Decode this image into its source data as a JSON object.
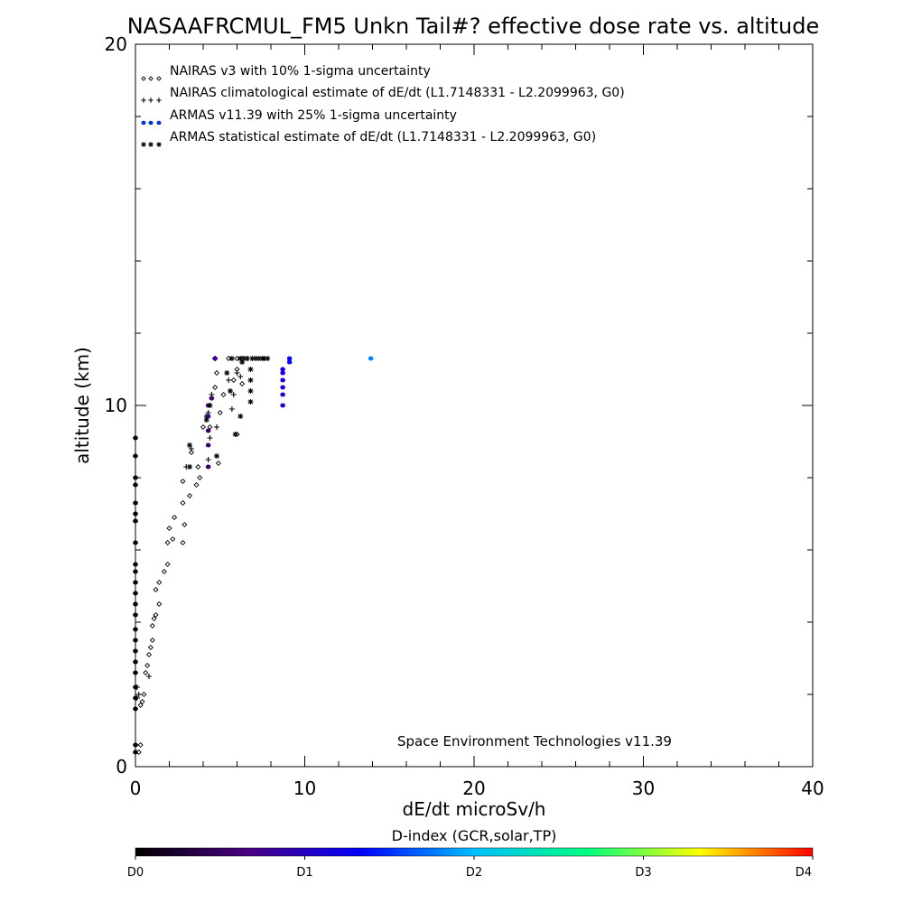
{
  "chart_data": {
    "type": "scatter",
    "title": "NASAAFRCMUL_FM5 Unkn Tail#? effective dose rate vs. altitude",
    "xlabel": "dE/dt microSv/h",
    "ylabel": "altitude (km)",
    "xlim": [
      0,
      40
    ],
    "ylim": [
      0,
      20
    ],
    "x_ticks": [
      "0",
      "10",
      "20",
      "30",
      "40"
    ],
    "y_ticks": [
      "0",
      "10",
      "20"
    ],
    "grid": false,
    "legend_position": "top-left",
    "annotation": "Space Environment Technologies v11.39",
    "colorbar": {
      "title": "D-index (GCR,solar,TP)",
      "labels": [
        {
          "text": "D0",
          "value": 0
        },
        {
          "text": "D1",
          "value": 5
        },
        {
          "text": "D2",
          "value": 10
        },
        {
          "text": "D3",
          "value": 20
        },
        {
          "text": "D4",
          "value": 40
        }
      ],
      "colors": [
        "#000000",
        "#4b0082",
        "#0000ff",
        "#00bfff",
        "#00ff80",
        "#ffff00",
        "#ff0000"
      ]
    },
    "series": [
      {
        "name": "NAIRAS v3 with 10% 1-sigma uncertainty",
        "marker": "diamond",
        "color": "#000000",
        "points": [
          [
            0.2,
            0.4
          ],
          [
            0.3,
            0.6
          ],
          [
            0.3,
            1.7
          ],
          [
            0.4,
            1.8
          ],
          [
            0.5,
            2.0
          ],
          [
            0.6,
            2.6
          ],
          [
            0.7,
            2.8
          ],
          [
            0.8,
            3.1
          ],
          [
            0.9,
            3.3
          ],
          [
            1.0,
            3.5
          ],
          [
            1.0,
            3.9
          ],
          [
            1.1,
            4.1
          ],
          [
            1.2,
            4.2
          ],
          [
            1.4,
            4.5
          ],
          [
            1.2,
            4.9
          ],
          [
            1.4,
            5.1
          ],
          [
            1.7,
            5.4
          ],
          [
            1.9,
            5.6
          ],
          [
            1.9,
            6.2
          ],
          [
            2.2,
            6.3
          ],
          [
            2.0,
            6.6
          ],
          [
            2.8,
            6.2
          ],
          [
            2.9,
            6.7
          ],
          [
            2.3,
            6.9
          ],
          [
            2.8,
            7.3
          ],
          [
            3.2,
            7.5
          ],
          [
            3.6,
            7.8
          ],
          [
            2.8,
            7.9
          ],
          [
            3.8,
            8.0
          ],
          [
            3.7,
            8.3
          ],
          [
            3.3,
            8.7
          ],
          [
            4.9,
            8.4
          ],
          [
            4.0,
            9.4
          ],
          [
            4.4,
            9.4
          ],
          [
            6.0,
            9.2
          ],
          [
            4.2,
            9.7
          ],
          [
            5.0,
            9.8
          ],
          [
            4.5,
            10.2
          ],
          [
            5.2,
            10.3
          ],
          [
            6.3,
            10.6
          ],
          [
            4.7,
            10.5
          ],
          [
            5.8,
            10.7
          ],
          [
            6.0,
            11.0
          ],
          [
            4.8,
            10.9
          ],
          [
            6.0,
            11.3
          ],
          [
            6.3,
            11.3
          ],
          [
            5.5,
            11.3
          ]
        ]
      },
      {
        "name": "NAIRAS climatological estimate of dE/dt (L1.7148331 - L2.2099963, G0)",
        "marker": "plus",
        "color": "#000000",
        "points": [
          [
            0.1,
            1.9
          ],
          [
            0.2,
            2.0
          ],
          [
            0.1,
            2.2
          ],
          [
            0.8,
            2.5
          ],
          [
            3.0,
            8.3
          ],
          [
            3.3,
            8.8
          ],
          [
            4.3,
            8.5
          ],
          [
            4.4,
            9.1
          ],
          [
            4.8,
            9.4
          ],
          [
            4.3,
            9.8
          ],
          [
            5.7,
            9.9
          ],
          [
            4.5,
            10.3
          ],
          [
            5.8,
            10.3
          ],
          [
            6.2,
            10.8
          ],
          [
            6.6,
            11.3
          ],
          [
            4.7,
            11.3
          ],
          [
            5.5,
            10.7
          ],
          [
            6.0,
            10.9
          ]
        ]
      },
      {
        "name": "ARMAS v11.39 with 25% 1-sigma uncertainty",
        "marker": "dot",
        "color": "#0033cc",
        "points": [
          [
            0.0,
            9.1
          ],
          [
            0.0,
            8.6
          ],
          [
            0.0,
            8.0
          ],
          [
            0.0,
            7.8
          ],
          [
            0.0,
            7.3
          ],
          [
            0.0,
            7.0
          ],
          [
            0.0,
            6.8
          ],
          [
            0.0,
            6.2
          ],
          [
            0.0,
            5.6
          ],
          [
            0.0,
            5.4
          ],
          [
            0.0,
            5.1
          ],
          [
            0.0,
            4.8
          ],
          [
            0.0,
            4.5
          ],
          [
            0.0,
            4.2
          ],
          [
            0.0,
            3.8
          ],
          [
            0.0,
            3.5
          ],
          [
            0.0,
            3.2
          ],
          [
            0.0,
            2.9
          ],
          [
            0.0,
            2.6
          ],
          [
            0.0,
            2.2
          ],
          [
            0.0,
            1.9
          ],
          [
            0.0,
            1.6
          ],
          [
            0.0,
            0.6
          ],
          [
            0.0,
            0.4
          ],
          [
            4.3,
            8.3
          ],
          [
            4.3,
            8.9
          ],
          [
            4.3,
            9.3
          ],
          [
            4.3,
            9.7
          ],
          [
            4.3,
            10.0
          ],
          [
            4.5,
            10.2
          ],
          [
            4.7,
            11.3
          ],
          [
            8.7,
            10.0
          ],
          [
            8.7,
            10.3
          ],
          [
            8.7,
            10.5
          ],
          [
            8.7,
            10.7
          ],
          [
            8.7,
            10.9
          ],
          [
            8.7,
            11.0
          ],
          [
            9.1,
            11.2
          ],
          [
            9.1,
            11.3
          ],
          [
            13.9,
            11.3
          ]
        ],
        "dindex": [
          0.1,
          0.1,
          0.1,
          0.1,
          0.1,
          0.1,
          0.1,
          0.1,
          0.1,
          0.1,
          0.1,
          0.1,
          0.1,
          0.1,
          0.1,
          0.1,
          0.1,
          0.1,
          0.1,
          0.1,
          0.1,
          0.1,
          0.1,
          0.1,
          2.5,
          2.5,
          2.5,
          3.0,
          3.0,
          3.0,
          4.0,
          5.0,
          5.0,
          5.5,
          5.5,
          5.5,
          5.5,
          6.0,
          6.0,
          9.0
        ]
      },
      {
        "name": "ARMAS statistical estimate of dE/dt (L1.7148331 - L2.2099963, G0)",
        "marker": "asterisk",
        "color": "#000000",
        "points": [
          [
            3.2,
            8.9
          ],
          [
            3.2,
            8.3
          ],
          [
            4.8,
            8.6
          ],
          [
            4.2,
            9.6
          ],
          [
            5.9,
            9.2
          ],
          [
            4.4,
            10.0
          ],
          [
            6.2,
            9.7
          ],
          [
            6.8,
            10.1
          ],
          [
            6.8,
            10.4
          ],
          [
            6.8,
            10.7
          ],
          [
            6.8,
            11.0
          ],
          [
            5.4,
            10.9
          ],
          [
            5.6,
            10.4
          ],
          [
            5.7,
            11.3
          ],
          [
            6.3,
            11.2
          ],
          [
            7.1,
            11.3
          ],
          [
            7.5,
            11.3
          ],
          [
            6.9,
            11.3
          ],
          [
            6.4,
            11.3
          ],
          [
            7.6,
            11.3
          ],
          [
            6.6,
            11.3
          ],
          [
            7.3,
            11.3
          ],
          [
            6.2,
            11.3
          ],
          [
            7.8,
            11.3
          ]
        ]
      }
    ]
  }
}
